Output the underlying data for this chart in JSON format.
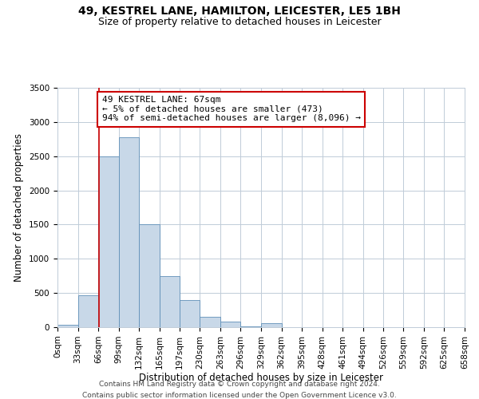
{
  "title": "49, KESTREL LANE, HAMILTON, LEICESTER, LE5 1BH",
  "subtitle": "Size of property relative to detached houses in Leicester",
  "xlabel": "Distribution of detached houses by size in Leicester",
  "ylabel": "Number of detached properties",
  "bin_edges": [
    0,
    33,
    66,
    99,
    132,
    165,
    197,
    230,
    263,
    296,
    329,
    362,
    395,
    428,
    461,
    494,
    526,
    559,
    592,
    625,
    658
  ],
  "bin_labels": [
    "0sqm",
    "33sqm",
    "66sqm",
    "99sqm",
    "132sqm",
    "165sqm",
    "197sqm",
    "230sqm",
    "263sqm",
    "296sqm",
    "329sqm",
    "362sqm",
    "395sqm",
    "428sqm",
    "461sqm",
    "494sqm",
    "526sqm",
    "559sqm",
    "592sqm",
    "625sqm",
    "658sqm"
  ],
  "bar_heights": [
    30,
    470,
    2500,
    2775,
    1500,
    750,
    400,
    150,
    80,
    10,
    55,
    5,
    0,
    0,
    0,
    0,
    0,
    0,
    0,
    0
  ],
  "bar_color": "#c8d8e8",
  "bar_edge_color": "#6090b8",
  "ylim": [
    0,
    3500
  ],
  "yticks": [
    0,
    500,
    1000,
    1500,
    2000,
    2500,
    3000,
    3500
  ],
  "property_line_x": 67,
  "property_line_color": "#cc0000",
  "annotation_text": "49 KESTREL LANE: 67sqm\n← 5% of detached houses are smaller (473)\n94% of semi-detached houses are larger (8,096) →",
  "annotation_box_color": "#ffffff",
  "annotation_box_edge_color": "#cc0000",
  "footnote1": "Contains HM Land Registry data © Crown copyright and database right 2024.",
  "footnote2": "Contains public sector information licensed under the Open Government Licence v3.0.",
  "background_color": "#ffffff",
  "grid_color": "#c0ccd8",
  "title_fontsize": 10,
  "subtitle_fontsize": 9,
  "axis_label_fontsize": 8.5,
  "tick_fontsize": 7.5,
  "annotation_fontsize": 8,
  "footnote_fontsize": 6.5
}
